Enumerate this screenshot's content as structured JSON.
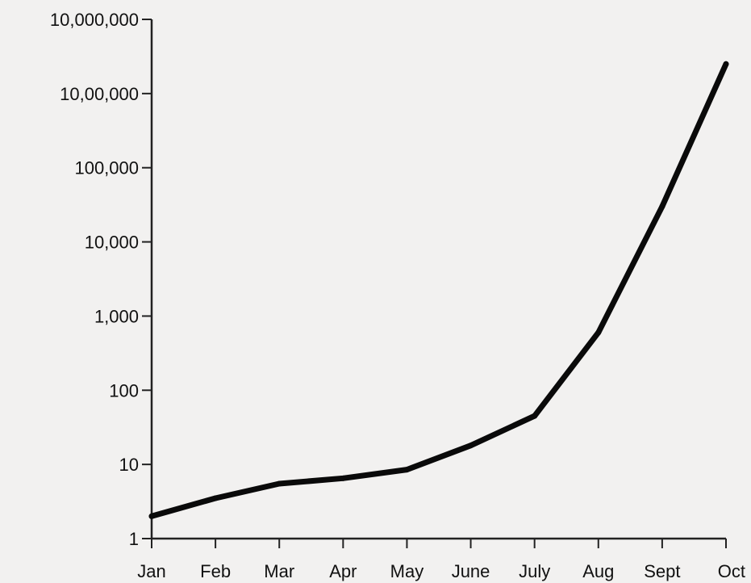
{
  "chart_data": {
    "type": "line",
    "title": "",
    "xlabel": "",
    "ylabel": "",
    "y_scale": "log10",
    "ylim": [
      1,
      10000000
    ],
    "grid": false,
    "categories": [
      "Jan",
      "Feb",
      "Mar",
      "Apr",
      "May",
      "June",
      "July",
      "Aug",
      "Sept",
      "Oct"
    ],
    "y_tick_values": [
      1,
      10,
      100,
      1000,
      10000,
      100000,
      1000000,
      10000000
    ],
    "y_tick_labels": [
      "1",
      "10",
      "100",
      "1,000",
      "10,000",
      "100,000",
      "10,00,000",
      "10,000,000"
    ],
    "series": [
      {
        "values": [
          2,
          3.5,
          5.5,
          6.5,
          8.5,
          18,
          45,
          600,
          30000,
          2500000
        ],
        "color": "#0a0a0a"
      }
    ]
  }
}
